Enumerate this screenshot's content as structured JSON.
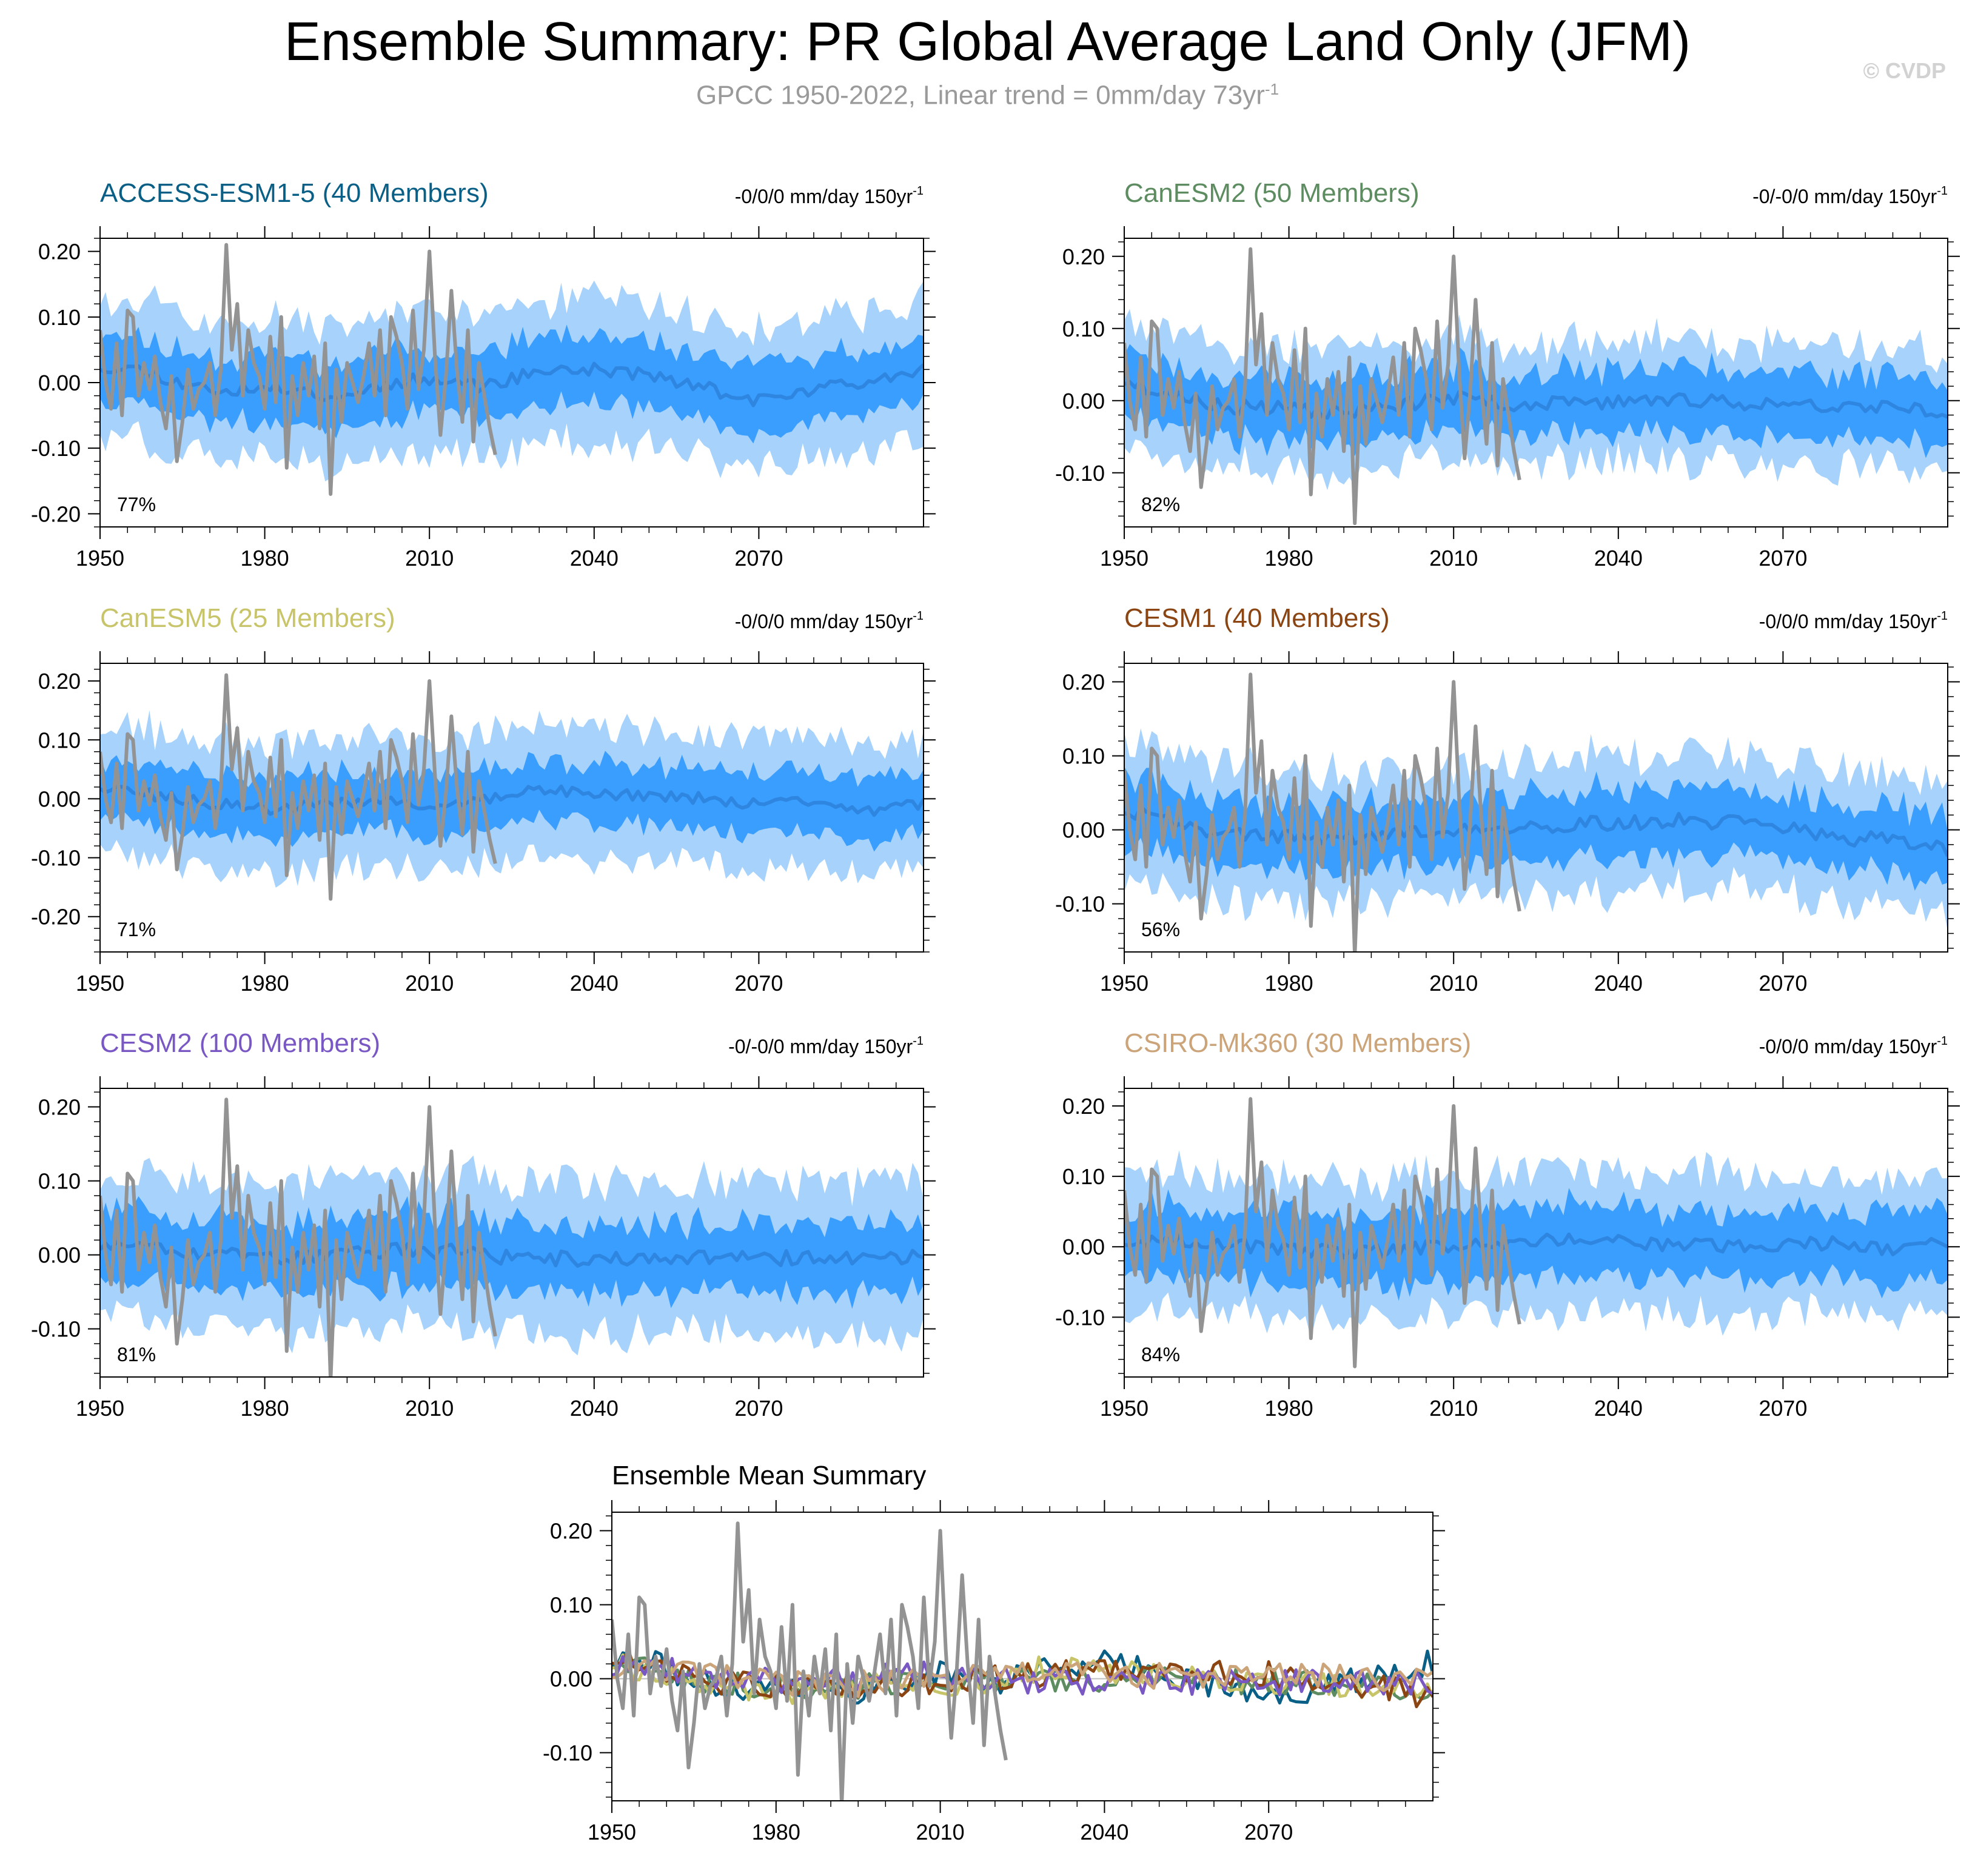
{
  "title": "Ensemble Summary: PR Global Average Land Only (JFM)",
  "subtitle": {
    "prefix": "GPCC 1950-2022, Linear trend = 0mm/day 73yr",
    "superscript": "-1"
  },
  "watermark": "© CVDP",
  "colors": {
    "band_outer": "#a6d2fb",
    "band_inner": "#3a9efe",
    "ensemble_mean": "#2e86e0",
    "observations": "#939393",
    "axis": "#000000"
  },
  "chart_data": [
    {
      "type": "line",
      "title": "ACCESS-ESM1-5 (40 Members)",
      "title_color": "#0a5f86",
      "trend_text": "-0/0/0 mm/day 150yr",
      "trend_sup": "-1",
      "pct_text": "77%",
      "xlim": [
        1950,
        2100
      ],
      "ylim": [
        -0.22,
        0.22
      ],
      "x_ticks": [
        1950,
        1980,
        2010,
        2040,
        2070
      ],
      "y_ticks": [
        -0.2,
        -0.1,
        0.0,
        0.1,
        0.2
      ],
      "y_tick_labels": [
        "-0.20",
        "-0.10",
        "0.00",
        "0.10",
        "0.20"
      ],
      "mean_profile": [
        [
          1950,
          0.025
        ],
        [
          1958,
          0.02
        ],
        [
          1966,
          -0.005
        ],
        [
          1974,
          -0.012
        ],
        [
          1985,
          -0.008
        ],
        [
          1993,
          -0.022
        ],
        [
          2002,
          -0.002
        ],
        [
          2012,
          0.008
        ],
        [
          2020,
          -0.006
        ],
        [
          2030,
          0.018
        ],
        [
          2040,
          0.02
        ],
        [
          2050,
          0.012
        ],
        [
          2060,
          -0.008
        ],
        [
          2070,
          -0.028
        ],
        [
          2080,
          -0.012
        ],
        [
          2090,
          0.005
        ],
        [
          2100,
          0.022
        ]
      ],
      "inner_half_width": 0.05,
      "outer_half_width": 0.105,
      "seed": 11
    },
    {
      "type": "line",
      "title": "CanESM2 (50 Members)",
      "title_color": "#5c8c60",
      "trend_text": "-0/-0/0 mm/day 150yr",
      "trend_sup": "-1",
      "pct_text": "82%",
      "xlim": [
        1950,
        2100
      ],
      "ylim": [
        -0.175,
        0.225
      ],
      "x_ticks": [
        1950,
        1980,
        2010,
        2040,
        2070
      ],
      "y_ticks": [
        -0.1,
        0.0,
        0.1,
        0.2
      ],
      "y_tick_labels": [
        "-0.10",
        "0.00",
        "0.10",
        "0.20"
      ],
      "mean_profile": [
        [
          1950,
          0.028
        ],
        [
          1958,
          0.008
        ],
        [
          1968,
          -0.008
        ],
        [
          1980,
          -0.012
        ],
        [
          1990,
          -0.016
        ],
        [
          2002,
          -0.004
        ],
        [
          2012,
          0.004
        ],
        [
          2022,
          -0.006
        ],
        [
          2035,
          -0.003
        ],
        [
          2050,
          0.002
        ],
        [
          2065,
          -0.004
        ],
        [
          2080,
          -0.006
        ],
        [
          2090,
          -0.006
        ],
        [
          2100,
          -0.018
        ]
      ],
      "inner_half_width": 0.045,
      "outer_half_width": 0.085,
      "seed": 23
    },
    {
      "type": "line",
      "title": "CanESM5 (25 Members)",
      "title_color": "#c8c46a",
      "trend_text": "-0/0/0 mm/day 150yr",
      "trend_sup": "-1",
      "pct_text": "71%",
      "xlim": [
        1950,
        2100
      ],
      "ylim": [
        -0.26,
        0.23
      ],
      "x_ticks": [
        1950,
        1980,
        2010,
        2040,
        2070
      ],
      "y_ticks": [
        -0.2,
        -0.1,
        0.0,
        0.1,
        0.2
      ],
      "y_tick_labels": [
        "-0.20",
        "-0.10",
        "0.00",
        "0.10",
        "0.20"
      ],
      "mean_profile": [
        [
          1950,
          0.022
        ],
        [
          1960,
          0.005
        ],
        [
          1970,
          -0.008
        ],
        [
          1982,
          -0.018
        ],
        [
          1995,
          -0.004
        ],
        [
          2008,
          -0.01
        ],
        [
          2020,
          -0.004
        ],
        [
          2030,
          0.018
        ],
        [
          2040,
          0.01
        ],
        [
          2050,
          0.004
        ],
        [
          2060,
          0.0
        ],
        [
          2070,
          -0.008
        ],
        [
          2080,
          -0.004
        ],
        [
          2090,
          -0.022
        ],
        [
          2100,
          -0.008
        ]
      ],
      "inner_half_width": 0.05,
      "outer_half_width": 0.11,
      "seed": 37
    },
    {
      "type": "line",
      "title": "CESM1 (40 Members)",
      "title_color": "#8b4513",
      "trend_text": "-0/0/0 mm/day 150yr",
      "trend_sup": "-1",
      "pct_text": "56%",
      "xlim": [
        1950,
        2100
      ],
      "ylim": [
        -0.165,
        0.225
      ],
      "x_ticks": [
        1950,
        1980,
        2010,
        2040,
        2070
      ],
      "y_ticks": [
        -0.1,
        0.0,
        0.1,
        0.2
      ],
      "y_tick_labels": [
        "-0.10",
        "0.00",
        "0.10",
        "0.20"
      ],
      "mean_profile": [
        [
          1950,
          0.028
        ],
        [
          1958,
          0.014
        ],
        [
          1966,
          -0.004
        ],
        [
          1976,
          -0.006
        ],
        [
          1986,
          -0.012
        ],
        [
          1996,
          -0.008
        ],
        [
          2008,
          -0.004
        ],
        [
          2020,
          0.002
        ],
        [
          2035,
          0.008
        ],
        [
          2050,
          0.012
        ],
        [
          2060,
          0.01
        ],
        [
          2070,
          0.006
        ],
        [
          2080,
          -0.014
        ],
        [
          2090,
          -0.01
        ],
        [
          2100,
          -0.026
        ]
      ],
      "inner_half_width": 0.045,
      "outer_half_width": 0.09,
      "seed": 41
    },
    {
      "type": "line",
      "title": "CESM2 (100 Members)",
      "title_color": "#7a58c4",
      "trend_text": "-0/-0/0 mm/day 150yr",
      "trend_sup": "-1",
      "pct_text": "81%",
      "xlim": [
        1950,
        2100
      ],
      "ylim": [
        -0.165,
        0.225
      ],
      "x_ticks": [
        1950,
        1980,
        2010,
        2040,
        2070
      ],
      "y_ticks": [
        -0.1,
        0.0,
        0.1,
        0.2
      ],
      "y_tick_labels": [
        "-0.10",
        "0.00",
        "0.10",
        "0.20"
      ],
      "mean_profile": [
        [
          1950,
          0.012
        ],
        [
          1958,
          0.02
        ],
        [
          1966,
          0.004
        ],
        [
          1975,
          -0.002
        ],
        [
          1985,
          -0.004
        ],
        [
          1995,
          0.002
        ],
        [
          2005,
          0.006
        ],
        [
          2015,
          0.004
        ],
        [
          2025,
          -0.004
        ],
        [
          2040,
          -0.006
        ],
        [
          2055,
          -0.004
        ],
        [
          2070,
          -0.004
        ],
        [
          2085,
          -0.006
        ],
        [
          2100,
          -0.004
        ]
      ],
      "inner_half_width": 0.048,
      "outer_half_width": 0.1,
      "seed": 53
    },
    {
      "type": "line",
      "title": "CSIRO-Mk360 (30 Members)",
      "title_color": "#cba47a",
      "trend_text": "-0/0/0 mm/day 150yr",
      "trend_sup": "-1",
      "pct_text": "84%",
      "xlim": [
        1950,
        2100
      ],
      "ylim": [
        -0.185,
        0.225
      ],
      "x_ticks": [
        1950,
        1980,
        2010,
        2040,
        2070
      ],
      "y_ticks": [
        -0.1,
        0.0,
        0.1,
        0.2
      ],
      "y_tick_labels": [
        "-0.10",
        "0.00",
        "0.10",
        "0.20"
      ],
      "mean_profile": [
        [
          1950,
          0.008
        ],
        [
          1960,
          0.012
        ],
        [
          1970,
          0.002
        ],
        [
          1982,
          -0.006
        ],
        [
          1994,
          -0.008
        ],
        [
          2006,
          0.0
        ],
        [
          2018,
          0.004
        ],
        [
          2030,
          0.01
        ],
        [
          2042,
          0.006
        ],
        [
          2055,
          0.002
        ],
        [
          2068,
          0.004
        ],
        [
          2080,
          0.006
        ],
        [
          2092,
          -0.006
        ],
        [
          2100,
          0.008
        ]
      ],
      "inner_half_width": 0.05,
      "outer_half_width": 0.1,
      "seed": 67
    },
    {
      "type": "line",
      "title": "Ensemble Mean Summary",
      "title_color": "#000000",
      "xlim": [
        1950,
        2100
      ],
      "ylim": [
        -0.165,
        0.225
      ],
      "x_ticks": [
        1950,
        1980,
        2010,
        2040,
        2070
      ],
      "y_ticks": [
        -0.1,
        0.0,
        0.1,
        0.2
      ],
      "y_tick_labels": [
        "-0.10",
        "0.00",
        "0.10",
        "0.20"
      ],
      "series": [
        {
          "name": "ACCESS-ESM1-5",
          "color": "#0a5f86",
          "profile_from": 0,
          "seed": 111
        },
        {
          "name": "CanESM2",
          "color": "#5c8c60",
          "profile_from": 1,
          "seed": 122
        },
        {
          "name": "CanESM5",
          "color": "#c8c46a",
          "profile_from": 2,
          "seed": 133
        },
        {
          "name": "CESM1",
          "color": "#8b4513",
          "profile_from": 3,
          "seed": 144
        },
        {
          "name": "CESM2",
          "color": "#7a58c4",
          "profile_from": 4,
          "seed": 155
        },
        {
          "name": "CSIRO-Mk360",
          "color": "#cba47a",
          "profile_from": 5,
          "seed": 166
        }
      ]
    }
  ],
  "observations": {
    "name": "GPCC",
    "years": [
      1950,
      1951,
      1952,
      1953,
      1954,
      1955,
      1956,
      1957,
      1958,
      1959,
      1960,
      1961,
      1962,
      1963,
      1964,
      1965,
      1966,
      1967,
      1968,
      1969,
      1970,
      1971,
      1972,
      1973,
      1974,
      1975,
      1976,
      1977,
      1978,
      1979,
      1980,
      1981,
      1982,
      1983,
      1984,
      1985,
      1986,
      1987,
      1988,
      1989,
      1990,
      1991,
      1992,
      1993,
      1994,
      1995,
      1996,
      1997,
      1998,
      1999,
      2000,
      2001,
      2002,
      2003,
      2004,
      2005,
      2006,
      2007,
      2008,
      2009,
      2010,
      2011,
      2012,
      2013,
      2014,
      2015,
      2016,
      2017,
      2018,
      2019,
      2020,
      2021,
      2022
    ],
    "values": [
      0.08,
      0.0,
      -0.04,
      0.06,
      -0.05,
      0.11,
      0.1,
      -0.02,
      0.03,
      -0.01,
      0.04,
      -0.03,
      -0.07,
      0.01,
      -0.12,
      -0.06,
      0.02,
      -0.04,
      -0.01,
      0.0,
      0.03,
      -0.05,
      0.02,
      0.21,
      0.05,
      0.12,
      -0.02,
      0.08,
      0.03,
      0.01,
      -0.04,
      0.07,
      -0.03,
      0.1,
      -0.13,
      0.01,
      -0.05,
      0.03,
      -0.02,
      0.04,
      -0.07,
      0.06,
      -0.17,
      0.02,
      -0.06,
      0.03,
      0.0,
      -0.03,
      0.01,
      0.06,
      -0.02,
      0.08,
      -0.05,
      0.1,
      0.07,
      0.03,
      -0.04,
      0.11,
      -0.01,
      0.05,
      0.2,
      0.04,
      -0.08,
      0.01,
      0.14,
      0.02,
      -0.06,
      0.08,
      -0.09,
      0.03,
      -0.02,
      -0.07,
      -0.11
    ]
  }
}
